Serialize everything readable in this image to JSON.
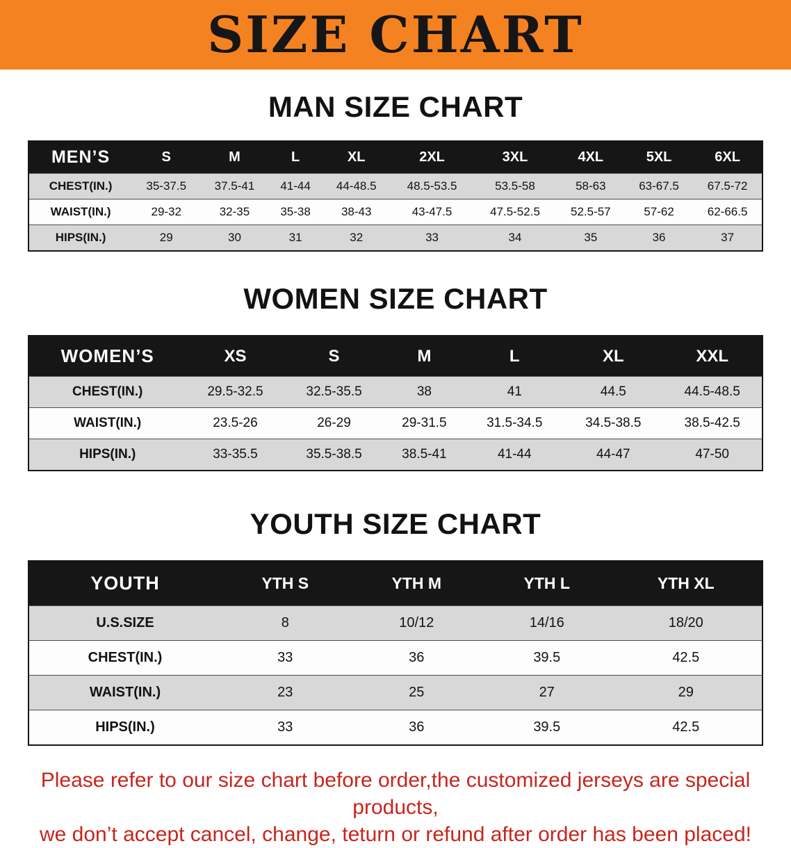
{
  "banner": {
    "title": "SIZE CHART"
  },
  "sections": [
    {
      "heading": "MAN SIZE CHART",
      "table": {
        "label": "MEN’S",
        "columns": [
          "S",
          "M",
          "L",
          "XL",
          "2XL",
          "3XL",
          "4XL",
          "5XL",
          "6XL"
        ],
        "rows": [
          {
            "label": "CHEST(IN.)",
            "values": [
              "35-37.5",
              "37.5-41",
              "41-44",
              "44-48.5",
              "48.5-53.5",
              "53.5-58",
              "58-63",
              "63-67.5",
              "67.5-72"
            ]
          },
          {
            "label": "WAIST(IN.)",
            "values": [
              "29-32",
              "32-35",
              "35-38",
              "38-43",
              "43-47.5",
              "47.5-52.5",
              "52.5-57",
              "57-62",
              "62-66.5"
            ]
          },
          {
            "label": "HIPS(IN.)",
            "values": [
              "29",
              "30",
              "31",
              "32",
              "33",
              "34",
              "35",
              "36",
              "37"
            ]
          }
        ]
      }
    },
    {
      "heading": "WOMEN SIZE CHART",
      "table": {
        "label": "WOMEN’S",
        "columns": [
          "XS",
          "S",
          "M",
          "L",
          "XL",
          "XXL"
        ],
        "rows": [
          {
            "label": "CHEST(IN.)",
            "values": [
              "29.5-32.5",
              "32.5-35.5",
              "38",
              "41",
              "44.5",
              "44.5-48.5"
            ]
          },
          {
            "label": "WAIST(IN.)",
            "values": [
              "23.5-26",
              "26-29",
              "29-31.5",
              "31.5-34.5",
              "34.5-38.5",
              "38.5-42.5"
            ]
          },
          {
            "label": "HIPS(IN.)",
            "values": [
              "33-35.5",
              "35.5-38.5",
              "38.5-41",
              "41-44",
              "44-47",
              "47-50"
            ]
          }
        ]
      }
    },
    {
      "heading": "YOUTH SIZE CHART",
      "table": {
        "label": "YOUTH",
        "columns": [
          "YTH S",
          "YTH M",
          "YTH L",
          "YTH XL"
        ],
        "rows": [
          {
            "label": "U.S.SIZE",
            "values": [
              "8",
              "10/12",
              "14/16",
              "18/20"
            ]
          },
          {
            "label": "CHEST(IN.)",
            "values": [
              "33",
              "36",
              "39.5",
              "42.5"
            ]
          },
          {
            "label": "WAIST(IN.)",
            "values": [
              "23",
              "25",
              "27",
              "29"
            ]
          },
          {
            "label": "HIPS(IN.)",
            "values": [
              "33",
              "36",
              "39.5",
              "42.5"
            ]
          }
        ]
      }
    }
  ],
  "disclaimer": {
    "line1": "Please refer to our size chart before order,the customized jerseys are special products,",
    "line2": "we don’t accept cancel, change, teturn or refund after order has been placed!",
    "color": "#c8251c"
  },
  "colors": {
    "banner_bg": "#f58220",
    "table_header_bg": "#161616",
    "row_stripe": "#d8d8d8"
  }
}
